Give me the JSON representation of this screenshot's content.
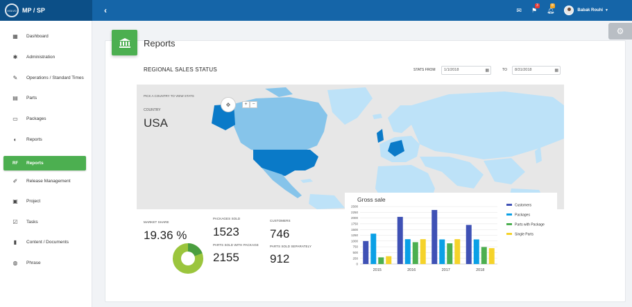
{
  "app": {
    "brand_title": "MP / SP",
    "logo_text": "VOLVO",
    "collapse_icon": "‹"
  },
  "topbar": {
    "mail_badge": "",
    "flag_badge": "3",
    "bell_badge": "8",
    "username": "Babak Rouhi"
  },
  "sidebar": {
    "items": [
      {
        "label": "Dashboard",
        "icon": "dashboard-icon",
        "glyph": "▦"
      },
      {
        "label": "Administration",
        "icon": "gear-icon",
        "glyph": "✱"
      },
      {
        "label": "Operations / Standard Times",
        "icon": "wrench-icon",
        "glyph": "✎"
      },
      {
        "label": "Parts",
        "icon": "box-icon",
        "glyph": "▤"
      },
      {
        "label": "Packages",
        "icon": "package-icon",
        "glyph": "▭"
      },
      {
        "label": "Reports",
        "icon": "pie-icon",
        "glyph": "◐"
      },
      {
        "label": "Reports",
        "icon": "rf-icon",
        "glyph": "RF"
      },
      {
        "label": "Release Management",
        "icon": "edit-icon",
        "glyph": "✐"
      },
      {
        "label": "Project",
        "icon": "project-icon",
        "glyph": "▣"
      },
      {
        "label": "Tasks",
        "icon": "check-icon",
        "glyph": "☑"
      },
      {
        "label": "Content / Documents",
        "icon": "document-icon",
        "glyph": "▮"
      },
      {
        "label": "Phrase",
        "icon": "globe-icon",
        "glyph": "◍"
      }
    ]
  },
  "page": {
    "title": "Reports"
  },
  "regional": {
    "title": "REGIONAL SALES STATUS",
    "stats_from_label": "STATS FROM",
    "date_from": "1/1/2018",
    "to_label": "TO",
    "date_to": "8/31/2018",
    "map_hint": "PICK A COUNTRY TO VIEW STATS",
    "country_label": "COUNTRY",
    "country_value": "USA"
  },
  "stats": {
    "market_share_label": "MARKET SHARE",
    "market_share_value": "19.36 %",
    "market_share_fraction": 0.1936,
    "packages_sold_label": "PACKAGES SOLD",
    "packages_sold_value": "1523",
    "customers_label": "CUSTOMERS",
    "customers_value": "746",
    "parts_with_package_label": "PARTS SOLD WITH PACKAGE",
    "parts_with_package_value": "2155",
    "parts_separately_label": "PARTS SOLD SEPARATELY",
    "parts_separately_value": "912"
  },
  "colors": {
    "primary": "#1565a8",
    "accent_green": "#4caf50",
    "donut_main": "#9bc53d",
    "donut_accent": "#4a9e3f",
    "map_selected": "#0a7ac8",
    "map_mid": "#86c4ea",
    "map_light": "#bde2f8"
  },
  "chart_data": {
    "type": "bar",
    "title": "Gross sale",
    "categories": [
      "2015",
      "2016",
      "2017",
      "2018"
    ],
    "yticks": [
      0,
      250,
      500,
      750,
      1000,
      1250,
      1500,
      1750,
      2000,
      2250,
      2500
    ],
    "ylim": [
      0,
      2500
    ],
    "legend_position": "right",
    "series": [
      {
        "name": "Customers",
        "color": "#3f51b5",
        "values": [
          1000,
          2050,
          2350,
          1700
        ]
      },
      {
        "name": "Packages",
        "color": "#0aa0e6",
        "values": [
          1320,
          1080,
          1070,
          1070
        ]
      },
      {
        "name": "Parts with Package",
        "color": "#4caf50",
        "values": [
          290,
          950,
          900,
          740
        ]
      },
      {
        "name": "Single Parts",
        "color": "#f5d32a",
        "values": [
          340,
          1080,
          1080,
          690
        ]
      }
    ]
  }
}
